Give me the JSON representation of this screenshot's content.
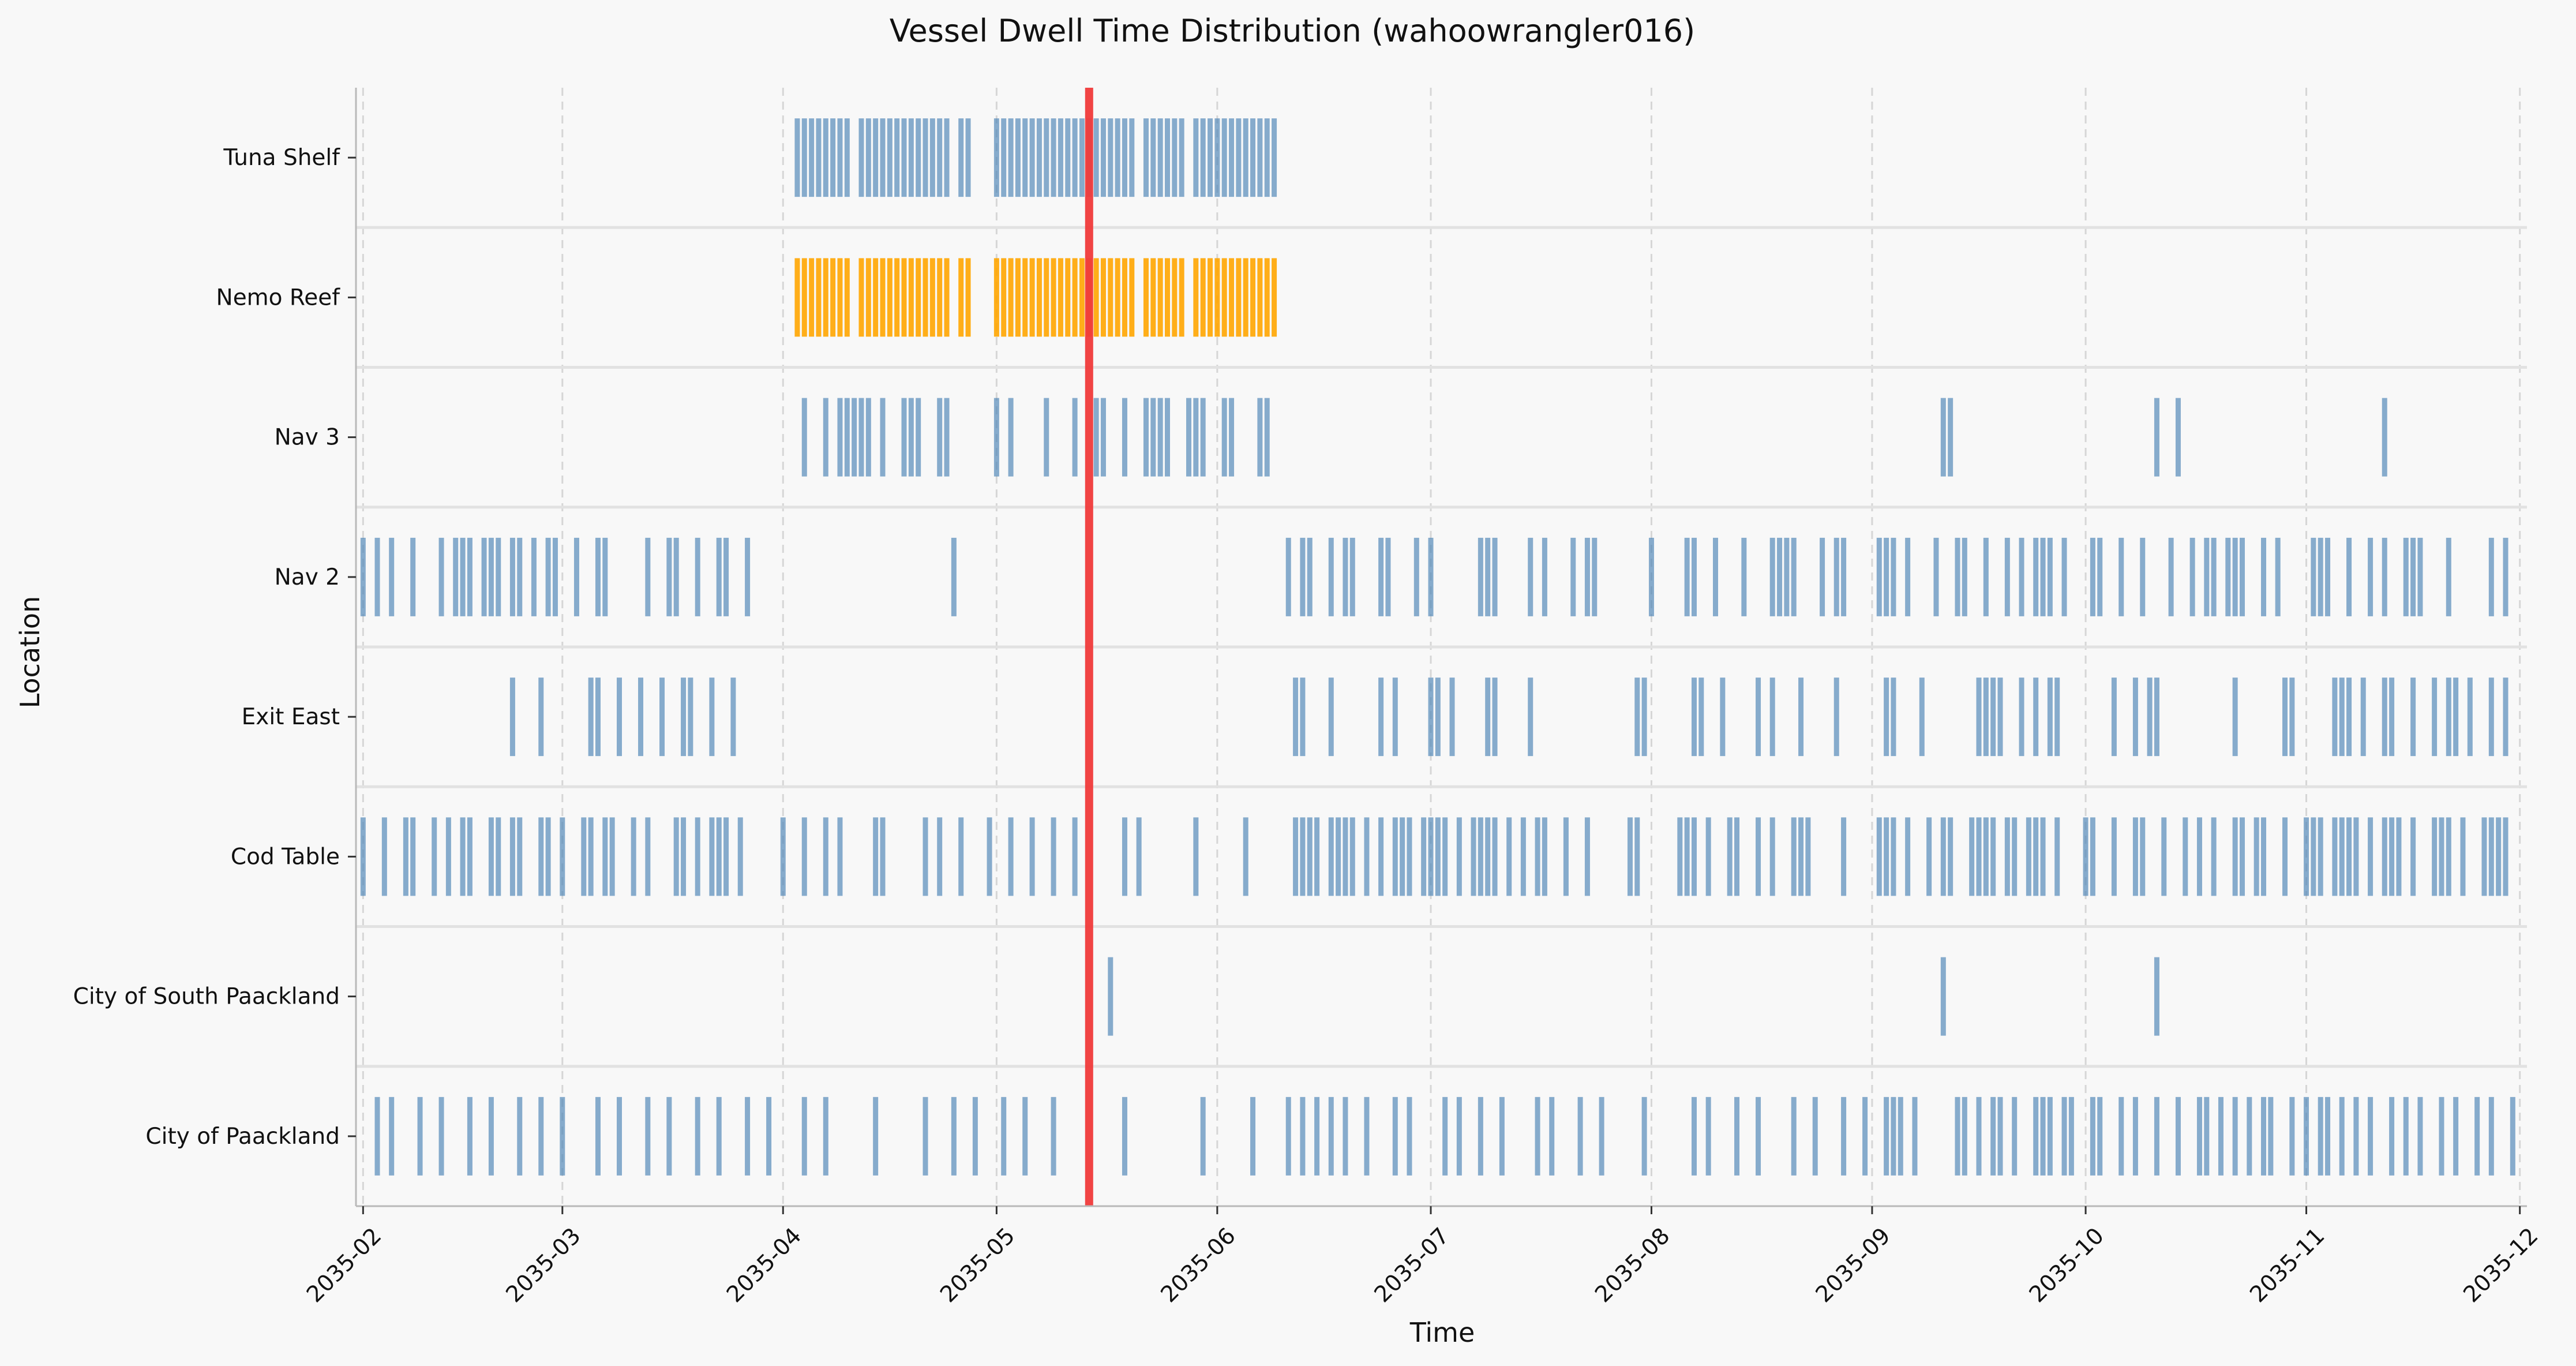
{
  "chart_data": {
    "type": "event-strip",
    "title": "Vessel Dwell Time Distribution (wahoowrangler016)",
    "xlabel": "Time",
    "ylabel": "Location",
    "xlim": [
      "2035-01-31",
      "2035-12-02"
    ],
    "x_ticks": [
      "2035-02",
      "2035-03",
      "2035-04",
      "2035-05",
      "2035-06",
      "2035-07",
      "2035-08",
      "2035-09",
      "2035-10",
      "2035-11",
      "2035-12"
    ],
    "grid": "vertical-dashed",
    "reference_line": {
      "date": "2035-05-14",
      "color": "#f03a3a"
    },
    "default_color": "#4f86b7",
    "highlight_color": "#ffa500",
    "locations": [
      {
        "name": "Tuna Shelf",
        "events": [
          "2035-04-03",
          "2035-04-04",
          "2035-04-05",
          "2035-04-06",
          "2035-04-07",
          "2035-04-08",
          "2035-04-09",
          "2035-04-10",
          "2035-04-12",
          "2035-04-13",
          "2035-04-14",
          "2035-04-15",
          "2035-04-16",
          "2035-04-17",
          "2035-04-18",
          "2035-04-19",
          "2035-04-20",
          "2035-04-21",
          "2035-04-22",
          "2035-04-23",
          "2035-04-24",
          "2035-04-26",
          "2035-04-27",
          "2035-05-01",
          "2035-05-02",
          "2035-05-03",
          "2035-05-04",
          "2035-05-05",
          "2035-05-06",
          "2035-05-07",
          "2035-05-08",
          "2035-05-09",
          "2035-05-10",
          "2035-05-11",
          "2035-05-12",
          "2035-05-13",
          "2035-05-14",
          "2035-05-15",
          "2035-05-16",
          "2035-05-17",
          "2035-05-18",
          "2035-05-19",
          "2035-05-20",
          "2035-05-22",
          "2035-05-23",
          "2035-05-24",
          "2035-05-25",
          "2035-05-26",
          "2035-05-27",
          "2035-05-29",
          "2035-05-30",
          "2035-05-31",
          "2035-06-01",
          "2035-06-02",
          "2035-06-03",
          "2035-06-04",
          "2035-06-05",
          "2035-06-06",
          "2035-06-07",
          "2035-06-08",
          "2035-06-09"
        ]
      },
      {
        "name": "Nemo Reef",
        "highlight": true,
        "events": [
          "2035-04-03",
          "2035-04-04",
          "2035-04-05",
          "2035-04-06",
          "2035-04-07",
          "2035-04-08",
          "2035-04-09",
          "2035-04-10",
          "2035-04-12",
          "2035-04-13",
          "2035-04-14",
          "2035-04-15",
          "2035-04-16",
          "2035-04-17",
          "2035-04-18",
          "2035-04-19",
          "2035-04-20",
          "2035-04-21",
          "2035-04-22",
          "2035-04-23",
          "2035-04-24",
          "2035-04-26",
          "2035-04-27",
          "2035-05-01",
          "2035-05-02",
          "2035-05-03",
          "2035-05-04",
          "2035-05-05",
          "2035-05-06",
          "2035-05-07",
          "2035-05-08",
          "2035-05-09",
          "2035-05-10",
          "2035-05-11",
          "2035-05-12",
          "2035-05-13",
          "2035-05-14",
          "2035-05-15",
          "2035-05-16",
          "2035-05-17",
          "2035-05-18",
          "2035-05-19",
          "2035-05-20",
          "2035-05-22",
          "2035-05-23",
          "2035-05-24",
          "2035-05-25",
          "2035-05-26",
          "2035-05-27",
          "2035-05-29",
          "2035-05-30",
          "2035-05-31",
          "2035-06-01",
          "2035-06-02",
          "2035-06-03",
          "2035-06-04",
          "2035-06-05",
          "2035-06-06",
          "2035-06-07",
          "2035-06-08",
          "2035-06-09"
        ]
      },
      {
        "name": "Nav 3",
        "events": [
          "2035-04-04",
          "2035-04-07",
          "2035-04-09",
          "2035-04-10",
          "2035-04-11",
          "2035-04-12",
          "2035-04-13",
          "2035-04-15",
          "2035-04-18",
          "2035-04-19",
          "2035-04-20",
          "2035-04-23",
          "2035-04-24",
          "2035-05-01",
          "2035-05-03",
          "2035-05-08",
          "2035-05-12",
          "2035-05-15",
          "2035-05-16",
          "2035-05-19",
          "2035-05-22",
          "2035-05-23",
          "2035-05-24",
          "2035-05-25",
          "2035-05-28",
          "2035-05-29",
          "2035-05-30",
          "2035-06-02",
          "2035-06-03",
          "2035-06-07",
          "2035-06-08",
          "2035-09-11",
          "2035-09-12",
          "2035-10-11",
          "2035-10-14",
          "2035-11-12"
        ]
      },
      {
        "name": "Nav 2",
        "events": [
          "2035-02-01",
          "2035-02-03",
          "2035-02-05",
          "2035-02-08",
          "2035-02-12",
          "2035-02-14",
          "2035-02-15",
          "2035-02-16",
          "2035-02-18",
          "2035-02-19",
          "2035-02-20",
          "2035-02-22",
          "2035-02-23",
          "2035-02-25",
          "2035-02-27",
          "2035-02-28",
          "2035-03-03",
          "2035-03-06",
          "2035-03-07",
          "2035-03-13",
          "2035-03-16",
          "2035-03-17",
          "2035-03-20",
          "2035-03-23",
          "2035-03-24",
          "2035-03-27",
          "2035-04-25",
          "2035-06-11",
          "2035-06-13",
          "2035-06-14",
          "2035-06-17",
          "2035-06-19",
          "2035-06-20",
          "2035-06-24",
          "2035-06-25",
          "2035-06-29",
          "2035-07-01",
          "2035-07-08",
          "2035-07-09",
          "2035-07-10",
          "2035-07-15",
          "2035-07-17",
          "2035-07-21",
          "2035-07-23",
          "2035-07-24",
          "2035-08-01",
          "2035-08-06",
          "2035-08-07",
          "2035-08-10",
          "2035-08-14",
          "2035-08-18",
          "2035-08-19",
          "2035-08-20",
          "2035-08-21",
          "2035-08-25",
          "2035-08-27",
          "2035-08-28",
          "2035-09-02",
          "2035-09-03",
          "2035-09-04",
          "2035-09-06",
          "2035-09-10",
          "2035-09-13",
          "2035-09-14",
          "2035-09-17",
          "2035-09-20",
          "2035-09-22",
          "2035-09-24",
          "2035-09-25",
          "2035-09-26",
          "2035-09-28",
          "2035-10-02",
          "2035-10-03",
          "2035-10-06",
          "2035-10-09",
          "2035-10-13",
          "2035-10-16",
          "2035-10-18",
          "2035-10-19",
          "2035-10-21",
          "2035-10-22",
          "2035-10-23",
          "2035-10-26",
          "2035-10-28",
          "2035-11-02",
          "2035-11-03",
          "2035-11-04",
          "2035-11-07",
          "2035-11-10",
          "2035-11-12",
          "2035-11-15",
          "2035-11-16",
          "2035-11-17",
          "2035-11-21",
          "2035-11-27",
          "2035-11-29"
        ]
      },
      {
        "name": "Exit East",
        "events": [
          "2035-02-22",
          "2035-02-26",
          "2035-03-05",
          "2035-03-06",
          "2035-03-09",
          "2035-03-12",
          "2035-03-15",
          "2035-03-18",
          "2035-03-19",
          "2035-03-22",
          "2035-03-25",
          "2035-06-12",
          "2035-06-13",
          "2035-06-17",
          "2035-06-24",
          "2035-06-26",
          "2035-07-01",
          "2035-07-02",
          "2035-07-04",
          "2035-07-09",
          "2035-07-10",
          "2035-07-15",
          "2035-07-30",
          "2035-07-31",
          "2035-08-07",
          "2035-08-08",
          "2035-08-11",
          "2035-08-16",
          "2035-08-18",
          "2035-08-22",
          "2035-08-27",
          "2035-09-03",
          "2035-09-04",
          "2035-09-08",
          "2035-09-16",
          "2035-09-17",
          "2035-09-18",
          "2035-09-19",
          "2035-09-22",
          "2035-09-24",
          "2035-09-26",
          "2035-09-27",
          "2035-10-05",
          "2035-10-08",
          "2035-10-10",
          "2035-10-11",
          "2035-10-22",
          "2035-10-29",
          "2035-10-30",
          "2035-11-05",
          "2035-11-06",
          "2035-11-07",
          "2035-11-09",
          "2035-11-12",
          "2035-11-13",
          "2035-11-16",
          "2035-11-19",
          "2035-11-21",
          "2035-11-22",
          "2035-11-24",
          "2035-11-27",
          "2035-11-29"
        ]
      },
      {
        "name": "Cod Table",
        "events": [
          "2035-02-01",
          "2035-02-04",
          "2035-02-07",
          "2035-02-08",
          "2035-02-11",
          "2035-02-13",
          "2035-02-15",
          "2035-02-16",
          "2035-02-19",
          "2035-02-20",
          "2035-02-22",
          "2035-02-23",
          "2035-02-26",
          "2035-02-27",
          "2035-03-01",
          "2035-03-04",
          "2035-03-05",
          "2035-03-07",
          "2035-03-08",
          "2035-03-11",
          "2035-03-13",
          "2035-03-17",
          "2035-03-18",
          "2035-03-20",
          "2035-03-22",
          "2035-03-23",
          "2035-03-24",
          "2035-03-26",
          "2035-04-01",
          "2035-04-04",
          "2035-04-07",
          "2035-04-09",
          "2035-04-14",
          "2035-04-15",
          "2035-04-21",
          "2035-04-23",
          "2035-04-26",
          "2035-04-30",
          "2035-05-03",
          "2035-05-06",
          "2035-05-09",
          "2035-05-12",
          "2035-05-19",
          "2035-05-21",
          "2035-05-29",
          "2035-06-05",
          "2035-06-12",
          "2035-06-13",
          "2035-06-14",
          "2035-06-15",
          "2035-06-17",
          "2035-06-18",
          "2035-06-19",
          "2035-06-20",
          "2035-06-22",
          "2035-06-24",
          "2035-06-26",
          "2035-06-27",
          "2035-06-28",
          "2035-06-30",
          "2035-07-01",
          "2035-07-02",
          "2035-07-03",
          "2035-07-05",
          "2035-07-07",
          "2035-07-08",
          "2035-07-09",
          "2035-07-10",
          "2035-07-12",
          "2035-07-14",
          "2035-07-16",
          "2035-07-17",
          "2035-07-20",
          "2035-07-23",
          "2035-07-29",
          "2035-07-30",
          "2035-08-05",
          "2035-08-06",
          "2035-08-07",
          "2035-08-09",
          "2035-08-12",
          "2035-08-13",
          "2035-08-16",
          "2035-08-18",
          "2035-08-21",
          "2035-08-22",
          "2035-08-23",
          "2035-08-28",
          "2035-09-02",
          "2035-09-03",
          "2035-09-04",
          "2035-09-06",
          "2035-09-09",
          "2035-09-11",
          "2035-09-12",
          "2035-09-15",
          "2035-09-16",
          "2035-09-17",
          "2035-09-18",
          "2035-09-20",
          "2035-09-21",
          "2035-09-23",
          "2035-09-24",
          "2035-09-25",
          "2035-09-27",
          "2035-10-01",
          "2035-10-02",
          "2035-10-05",
          "2035-10-08",
          "2035-10-09",
          "2035-10-12",
          "2035-10-15",
          "2035-10-17",
          "2035-10-19",
          "2035-10-22",
          "2035-10-23",
          "2035-10-25",
          "2035-10-26",
          "2035-10-29",
          "2035-11-01",
          "2035-11-02",
          "2035-11-03",
          "2035-11-05",
          "2035-11-06",
          "2035-11-07",
          "2035-11-08",
          "2035-11-10",
          "2035-11-12",
          "2035-11-13",
          "2035-11-14",
          "2035-11-16",
          "2035-11-19",
          "2035-11-20",
          "2035-11-21",
          "2035-11-23",
          "2035-11-26",
          "2035-11-27",
          "2035-11-28",
          "2035-11-29"
        ]
      },
      {
        "name": "City of South Paackland",
        "events": [
          "2035-05-17",
          "2035-09-11",
          "2035-10-11"
        ]
      },
      {
        "name": "City of Paackland",
        "events": [
          "2035-02-03",
          "2035-02-05",
          "2035-02-09",
          "2035-02-12",
          "2035-02-16",
          "2035-02-19",
          "2035-02-23",
          "2035-02-26",
          "2035-03-01",
          "2035-03-06",
          "2035-03-09",
          "2035-03-13",
          "2035-03-16",
          "2035-03-20",
          "2035-03-23",
          "2035-03-27",
          "2035-03-30",
          "2035-04-04",
          "2035-04-07",
          "2035-04-14",
          "2035-04-21",
          "2035-04-25",
          "2035-04-28",
          "2035-05-02",
          "2035-05-05",
          "2035-05-09",
          "2035-05-19",
          "2035-05-30",
          "2035-06-06",
          "2035-06-11",
          "2035-06-13",
          "2035-06-15",
          "2035-06-17",
          "2035-06-19",
          "2035-06-22",
          "2035-06-26",
          "2035-06-28",
          "2035-07-03",
          "2035-07-05",
          "2035-07-08",
          "2035-07-11",
          "2035-07-16",
          "2035-07-18",
          "2035-07-22",
          "2035-07-25",
          "2035-07-31",
          "2035-08-07",
          "2035-08-09",
          "2035-08-13",
          "2035-08-16",
          "2035-08-21",
          "2035-08-24",
          "2035-08-28",
          "2035-08-31",
          "2035-09-03",
          "2035-09-04",
          "2035-09-05",
          "2035-09-07",
          "2035-09-13",
          "2035-09-14",
          "2035-09-16",
          "2035-09-18",
          "2035-09-19",
          "2035-09-21",
          "2035-09-24",
          "2035-09-25",
          "2035-09-26",
          "2035-09-28",
          "2035-09-29",
          "2035-10-02",
          "2035-10-03",
          "2035-10-06",
          "2035-10-08",
          "2035-10-11",
          "2035-10-14",
          "2035-10-17",
          "2035-10-18",
          "2035-10-20",
          "2035-10-22",
          "2035-10-24",
          "2035-10-26",
          "2035-10-27",
          "2035-10-30",
          "2035-11-01",
          "2035-11-03",
          "2035-11-04",
          "2035-11-06",
          "2035-11-08",
          "2035-11-10",
          "2035-11-13",
          "2035-11-15",
          "2035-11-17",
          "2035-11-20",
          "2035-11-22",
          "2035-11-25",
          "2035-11-27",
          "2035-11-30"
        ]
      }
    ]
  }
}
